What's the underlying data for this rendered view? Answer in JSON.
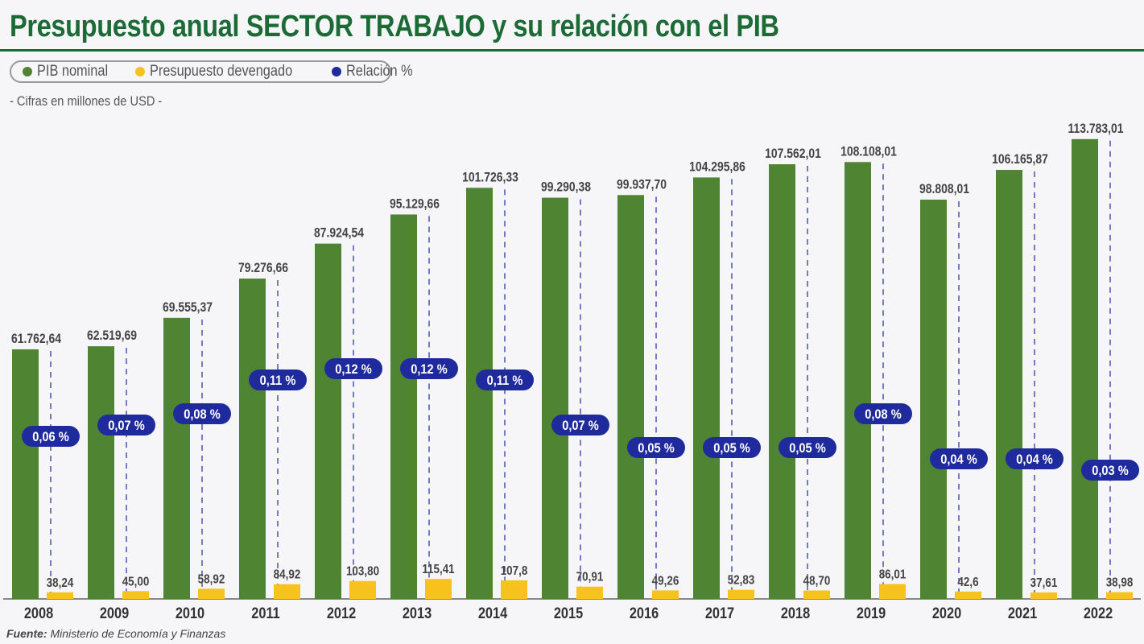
{
  "title": "Presupuesto anual SECTOR TRABAJO y su relación con el PIB",
  "legend": [
    {
      "label": "PIB nominal",
      "color": "#4e8432"
    },
    {
      "label": "Presupuesto devengado",
      "color": "#f7c21e"
    },
    {
      "label": "Relación %",
      "color": "#1f2a9c"
    }
  ],
  "subtitle": "- Cifras en millones de USD -",
  "source": {
    "label": "Fuente:",
    "text": "Ministerio de Economía y Finanzas"
  },
  "chart_data": {
    "type": "bar",
    "categories": [
      "2008",
      "2009",
      "2010",
      "2011",
      "2012",
      "2013",
      "2014",
      "2015",
      "2016",
      "2017",
      "2018",
      "2019",
      "2020",
      "2021",
      "2022"
    ],
    "series": [
      {
        "name": "PIB nominal",
        "color": "#4e8432",
        "values": [
          61762.64,
          62519.69,
          69555.37,
          79276.66,
          87924.54,
          95129.66,
          101726.33,
          99290.38,
          99937.7,
          104295.86,
          107562.01,
          108108.01,
          98808.01,
          106165.87,
          113783.01
        ],
        "labels": [
          "61.762,64",
          "62.519,69",
          "69.555,37",
          "79.276,66",
          "87.924,54",
          "95.129,66",
          "101.726,33",
          "99.290,38",
          "99.937,70",
          "104.295,86",
          "107.562,01",
          "108.108,01",
          "98.808,01",
          "106.165,87",
          "113.783,01"
        ]
      },
      {
        "name": "Presupuesto devengado",
        "color": "#f7c21e",
        "values": [
          38.24,
          45.0,
          58.92,
          84.92,
          103.8,
          115.41,
          107.8,
          70.91,
          49.26,
          52.83,
          48.7,
          86.01,
          42.6,
          37.61,
          38.98
        ],
        "labels": [
          "38,24",
          "45,00",
          "58,92",
          "84,92",
          "103,80",
          "115,41",
          "107,8",
          "70,91",
          "49,26",
          "52,83",
          "48,70",
          "86,01",
          "42,6",
          "37,61",
          "38,98"
        ]
      },
      {
        "name": "Relación %",
        "color": "#1f2a9c",
        "values": [
          0.06,
          0.07,
          0.08,
          0.11,
          0.12,
          0.12,
          0.11,
          0.07,
          0.05,
          0.05,
          0.05,
          0.08,
          0.04,
          0.04,
          0.03
        ],
        "labels": [
          "0,06 %",
          "0,07 %",
          "0,08 %",
          "0,11 %",
          "0,12 %",
          "0,12 %",
          "0,11 %",
          "0,07 %",
          "0,05 %",
          "0,05 %",
          "0,05 %",
          "0,08 %",
          "0,04 %",
          "0,04 %",
          "0,03 %"
        ]
      }
    ],
    "grid": false,
    "legend_position": "top-left"
  }
}
